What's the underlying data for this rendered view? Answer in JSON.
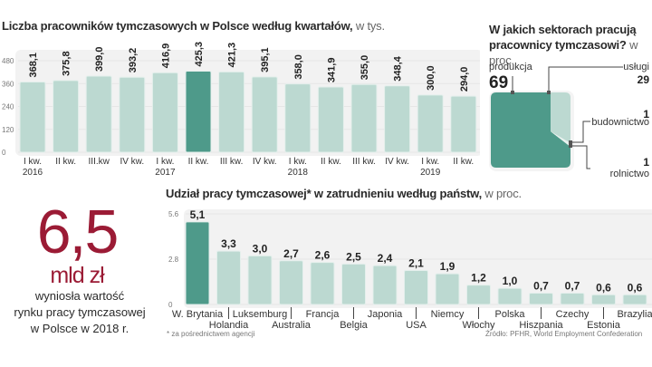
{
  "chart_data": [
    {
      "type": "bar",
      "title": "Liczba pracowników tymczasowych w Polsce według kwartałów,",
      "unit": "w tys.",
      "categories": [
        "I kw.|2016",
        "II kw.",
        "III.kw",
        "IV kw.",
        "I kw.|2017",
        "II kw.",
        "III kw.",
        "IV kw.",
        "I kw.|2018",
        "II kw.",
        "III kw.",
        "IV kw.",
        "I kw.|2019",
        "II kw."
      ],
      "values": [
        368.1,
        375.8,
        399.0,
        393.2,
        416.9,
        425.3,
        421.3,
        395.1,
        358.0,
        341.9,
        355.0,
        348.4,
        300.0,
        294.0
      ],
      "value_labels": [
        "368,1",
        "375,8",
        "399,0",
        "393,2",
        "416,9",
        "425,3",
        "421,3",
        "395,1",
        "358,0",
        "341,9",
        "355,0",
        "348,4",
        "300,0",
        "294,0"
      ],
      "highlight_index": 5,
      "yticks": [
        "0",
        "120",
        "240",
        "360",
        "480"
      ],
      "ylim": [
        0,
        480
      ],
      "grid": true
    },
    {
      "type": "pie",
      "title_line1": "W jakich sektorach pracują",
      "title_line2": "pracownicy tymczasowi?",
      "unit": "w proc.",
      "slices": [
        {
          "label": "produkcja",
          "value": 69,
          "value_label": "69",
          "color": "#4e9a8a"
        },
        {
          "label": "usługi",
          "value": 29,
          "value_label": "29",
          "color": "#bcd9d1"
        },
        {
          "label": "budownictwo",
          "value": 1,
          "value_label": "1",
          "color": "#e9f2ef"
        },
        {
          "label": "rolnictwo",
          "value": 1,
          "value_label": "1",
          "color": "#4e9a8a"
        }
      ]
    },
    {
      "type": "bar",
      "title": "Udział pracy tymczasowej* w zatrudnieniu według państw,",
      "unit": "w proc.",
      "categories": [
        "W. Brytania",
        "Holandia",
        "Luksemburg",
        "Australia",
        "Francja",
        "Belgia",
        "Japonia",
        "USA",
        "Niemcy",
        "Włochy",
        "Polska",
        "Hiszpania",
        "Czechy",
        "Estonia",
        "Brazylia"
      ],
      "values": [
        5.1,
        3.3,
        3.0,
        2.7,
        2.6,
        2.5,
        2.4,
        2.1,
        1.9,
        1.2,
        1.0,
        0.7,
        0.7,
        0.6,
        0.6
      ],
      "value_labels": [
        "5,1",
        "3,3",
        "3,0",
        "2,7",
        "2,6",
        "2,5",
        "2,4",
        "2,1",
        "1,9",
        "1,2",
        "1,0",
        "0,7",
        "0,7",
        "0,6",
        "0,6"
      ],
      "highlight_index": 0,
      "yticks": [
        "0",
        "2.8",
        "5.6"
      ],
      "ylim": [
        0,
        5.6
      ],
      "grid": true
    }
  ],
  "colors": {
    "bar": "#bcd9d1",
    "highlight": "#4e9a8a",
    "accent": "#9b1b35",
    "panel": "#f2f2f2"
  },
  "callout": {
    "value": "6,5",
    "unit": "mld zł",
    "desc_line1": "wyniosła wartość",
    "desc_line2": "rynku pracy tymczasowej",
    "desc_line3": "w Polsce w 2018 r."
  },
  "footnote": "* za pośrednictwem agencji",
  "source": "Źródło: PFHR, World Employment Confederation"
}
